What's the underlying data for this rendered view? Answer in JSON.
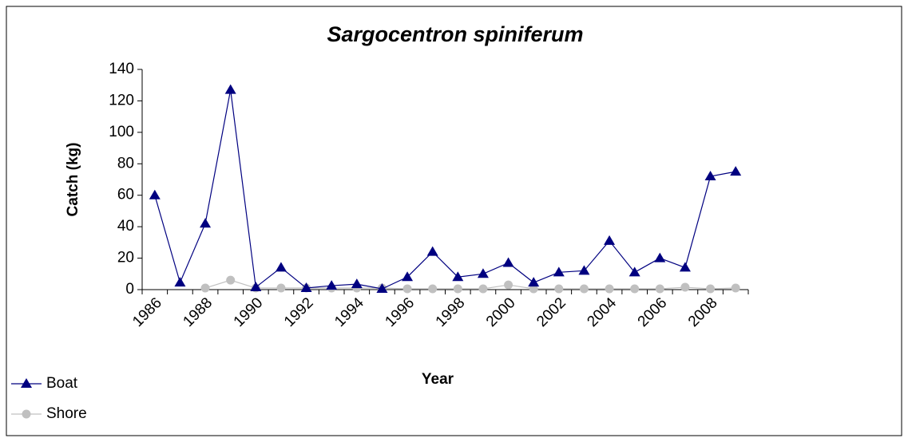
{
  "chart_data": {
    "type": "line",
    "title": "Sargocentron spiniferum",
    "x_label": "Year",
    "y_label": "Catch (kg)",
    "categories": [
      "1986",
      null,
      "1988",
      null,
      "1990",
      null,
      "1992",
      null,
      "1994",
      null,
      "1996",
      null,
      "1998",
      null,
      "2000",
      null,
      "2002",
      null,
      "2004",
      null,
      "2006",
      null,
      "2008",
      null
    ],
    "series": [
      {
        "name": "Boat",
        "color": "#000080",
        "marker": "triangle",
        "values": [
          60,
          4.5,
          42,
          127,
          1.5,
          14,
          1,
          2.5,
          3.5,
          0.5,
          8,
          24,
          8,
          10,
          17,
          4.5,
          11,
          12,
          31,
          11,
          20,
          14,
          72,
          75
        ]
      },
      {
        "name": "Shore",
        "color": "#c0c0c0",
        "marker": "circle",
        "values": [
          null,
          null,
          1,
          6,
          1,
          1,
          1,
          1,
          1,
          1,
          0.5,
          0.5,
          0.5,
          0.5,
          3,
          0.5,
          0.5,
          0.5,
          0.5,
          0.5,
          0.5,
          1.5,
          0.5,
          1
        ]
      }
    ],
    "ylim": [
      0,
      140
    ],
    "yticks": [
      0,
      20,
      40,
      60,
      80,
      100,
      120,
      140
    ],
    "legend": "bottom-left"
  }
}
